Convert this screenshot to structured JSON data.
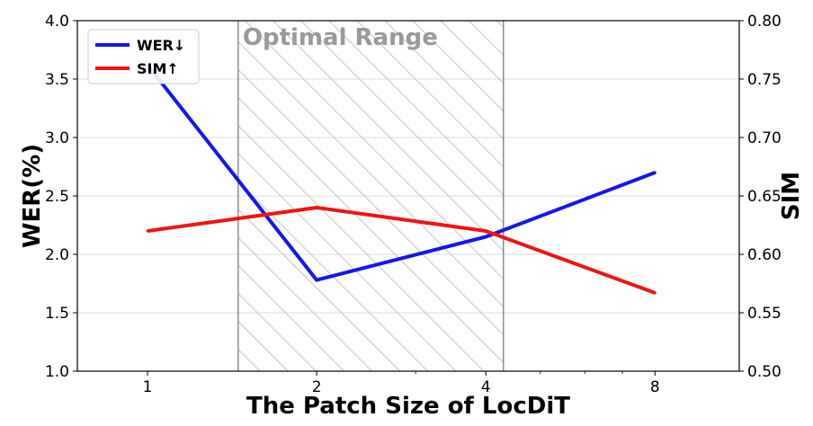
{
  "chart_data": {
    "type": "line",
    "title": "",
    "xlabel": "The Patch Size of LocDiT",
    "x_categories": [
      "1",
      "2",
      "4",
      "8"
    ],
    "x_scale": "log2",
    "y_left": {
      "label": "WER(%)",
      "lim": [
        1.0,
        4.0
      ],
      "ticks": [
        "1.0",
        "1.5",
        "2.0",
        "2.5",
        "3.0",
        "3.5",
        "4.0"
      ]
    },
    "y_right": {
      "label": "SIM",
      "lim": [
        0.5,
        0.8
      ],
      "ticks": [
        "0.50",
        "0.55",
        "0.60",
        "0.65",
        "0.70",
        "0.75",
        "0.80"
      ]
    },
    "series": [
      {
        "name": "WER↓",
        "axis": "left",
        "color": "#1515ee",
        "x": [
          1,
          2,
          4,
          8
        ],
        "values": [
          3.62,
          1.78,
          2.15,
          2.7
        ]
      },
      {
        "name": "SIM↑",
        "axis": "right",
        "color": "#ee1515",
        "x": [
          1,
          2,
          4,
          8
        ],
        "values": [
          0.62,
          0.64,
          0.62,
          0.567
        ]
      }
    ],
    "highlight_band": {
      "label": "Optimal Range",
      "x_range": [
        1.45,
        4.3
      ],
      "pattern": "diagonal-hatch"
    },
    "grid": "horizontal",
    "legend_position": "top-left"
  }
}
